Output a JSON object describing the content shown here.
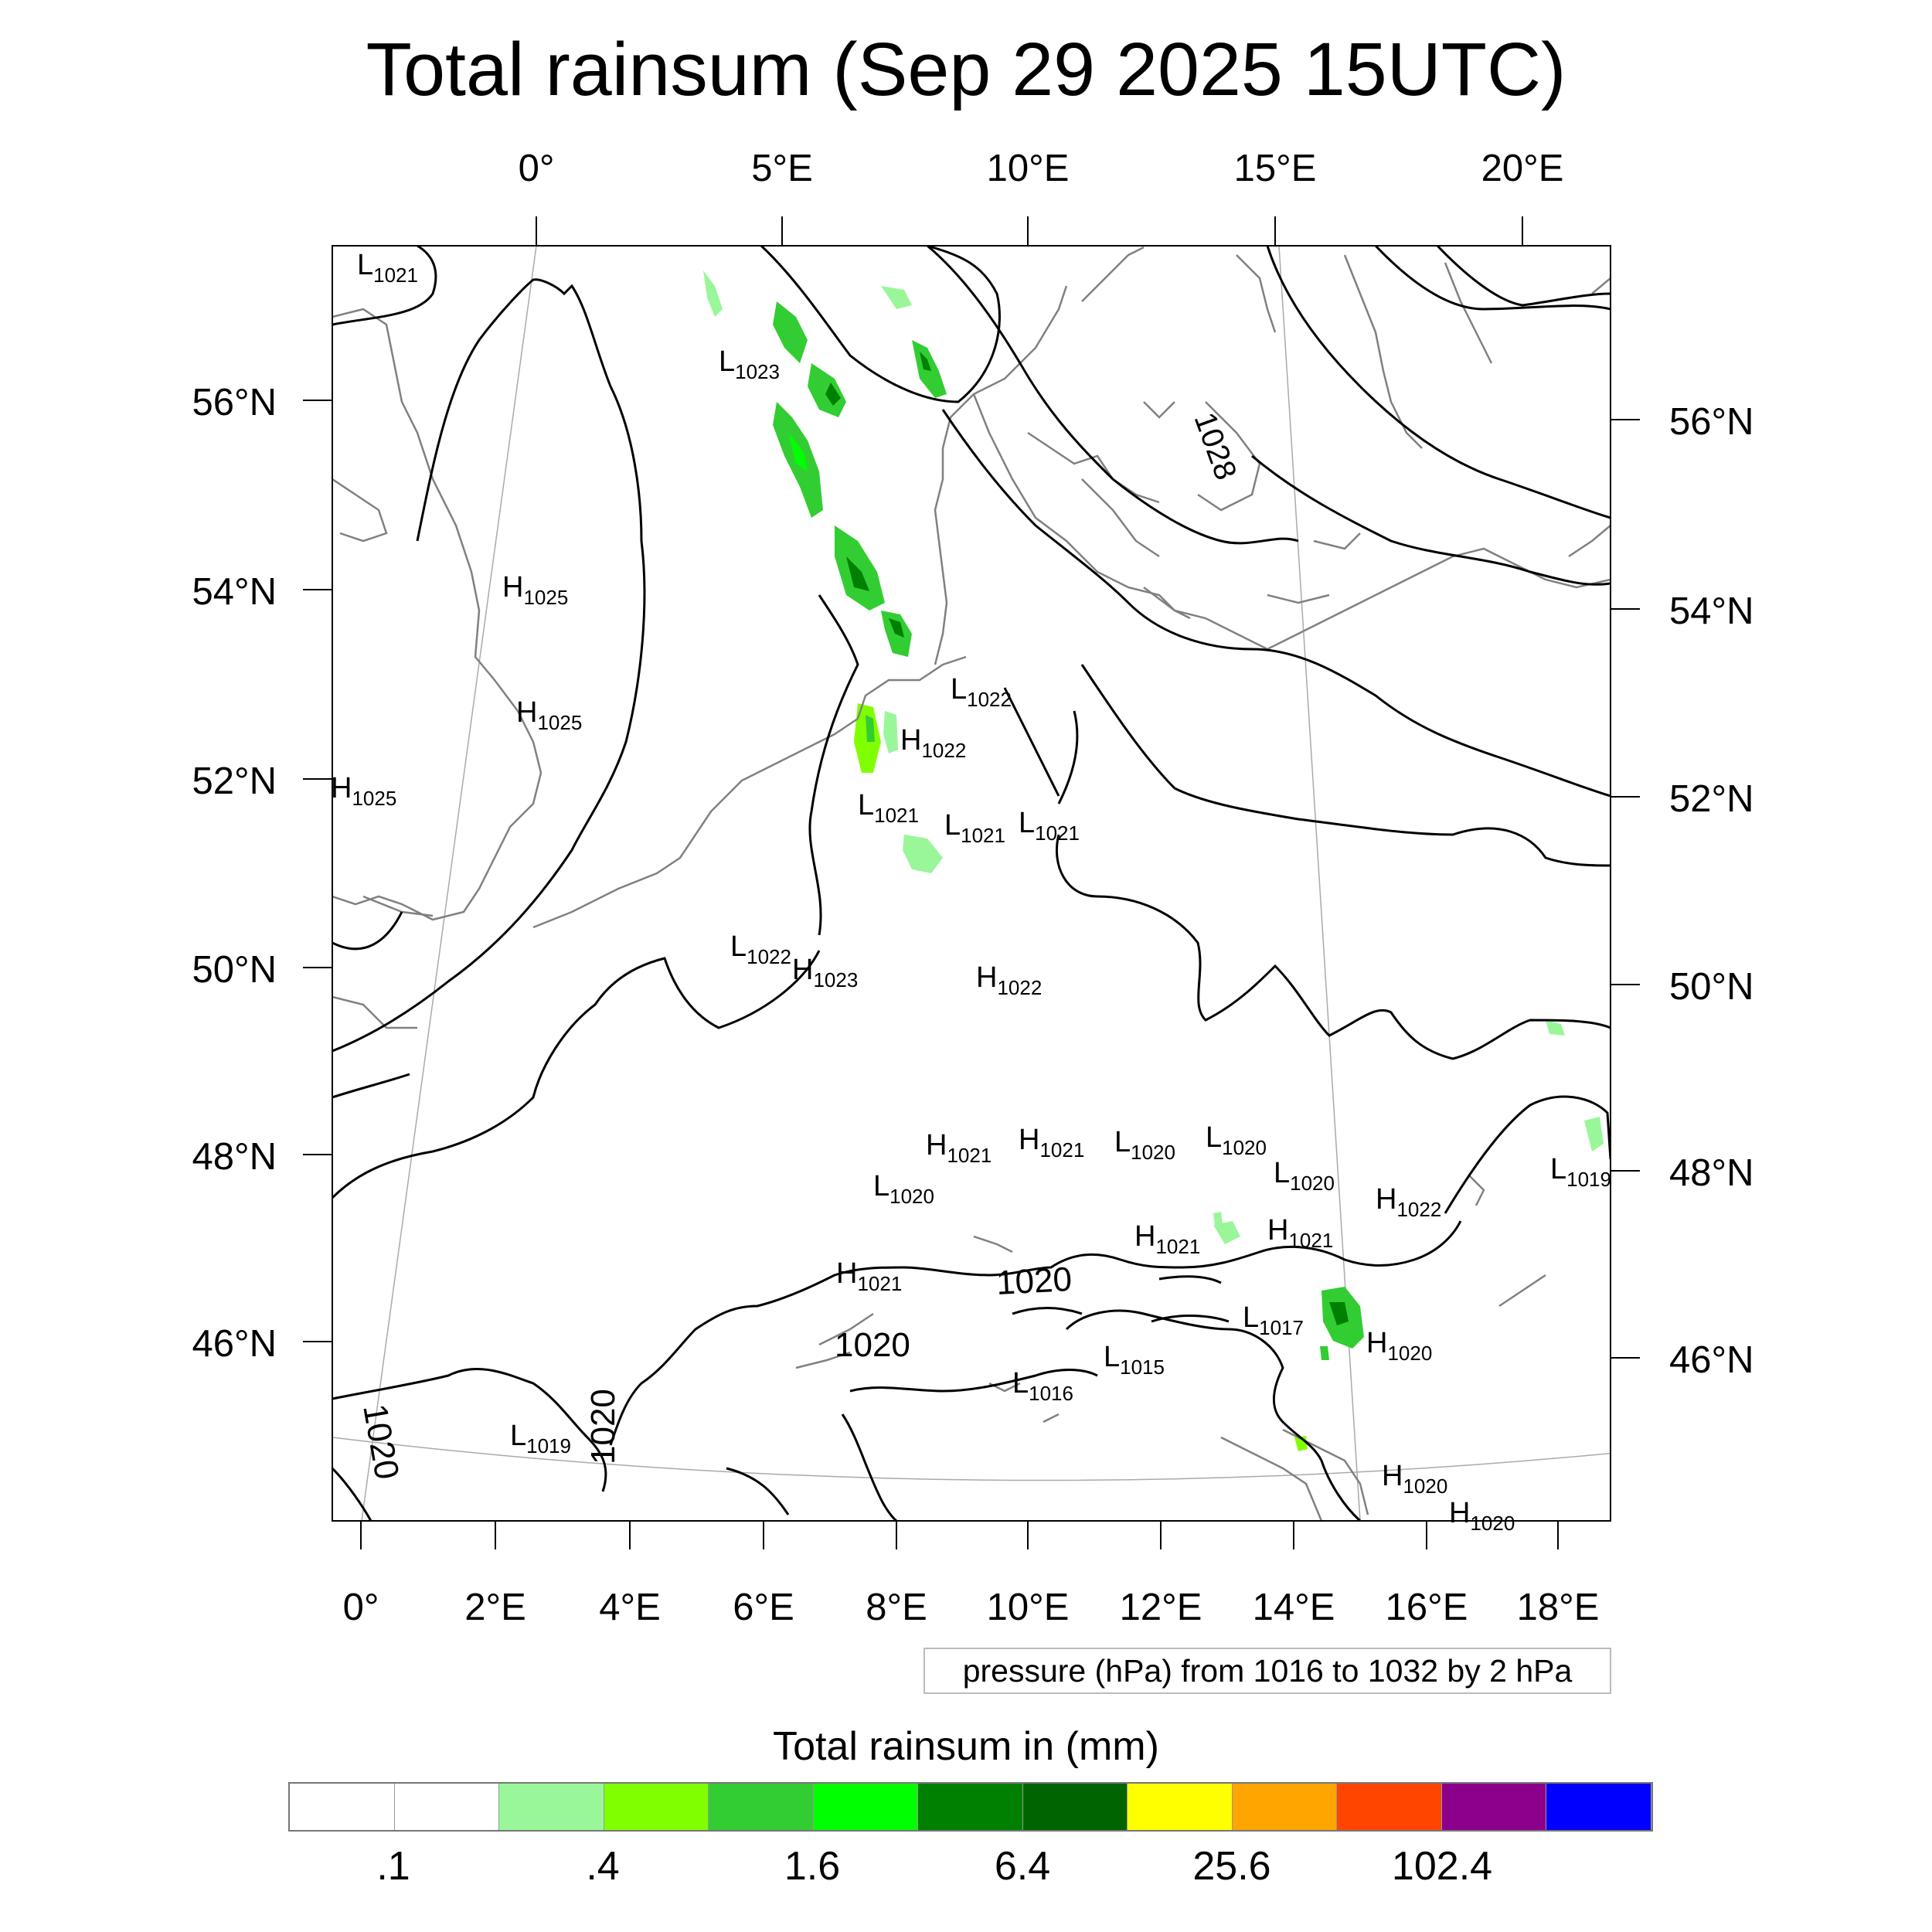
{
  "title": "Total rainsum (Sep 29 2025 15UTC)",
  "top_lon_labels": [
    "0°",
    "5°E",
    "10°E",
    "15°E",
    "20°E"
  ],
  "bottom_lon_labels": [
    "0°",
    "2°E",
    "4°E",
    "6°E",
    "8°E",
    "10°E",
    "12°E",
    "14°E",
    "16°E",
    "18°E"
  ],
  "left_lat_labels": [
    "56°N",
    "54°N",
    "52°N",
    "50°N",
    "48°N",
    "46°N"
  ],
  "right_lat_labels": [
    "56°N",
    "54°N",
    "52°N",
    "50°N",
    "48°N",
    "46°N"
  ],
  "pressure_labels": [
    {
      "t": "L",
      "v": "1021"
    },
    {
      "t": "L",
      "v": "1023"
    },
    {
      "t": "H",
      "v": "1025"
    },
    {
      "t": "H",
      "v": "1025"
    },
    {
      "t": "H",
      "v": "1025"
    },
    {
      "t": "L",
      "v": "1022"
    },
    {
      "t": "H",
      "v": "1022"
    },
    {
      "t": "L",
      "v": "1021"
    },
    {
      "t": "L",
      "v": "1021"
    },
    {
      "t": "L",
      "v": "1021"
    },
    {
      "t": "L",
      "v": "1022"
    },
    {
      "t": "H",
      "v": "1023"
    },
    {
      "t": "H",
      "v": "1022"
    },
    {
      "t": "H",
      "v": "1021"
    },
    {
      "t": "H",
      "v": "1021"
    },
    {
      "t": "L",
      "v": "1020"
    },
    {
      "t": "L",
      "v": "1020"
    },
    {
      "t": "L",
      "v": "1020"
    },
    {
      "t": "L",
      "v": "1020"
    },
    {
      "t": "H",
      "v": "1022"
    },
    {
      "t": "L",
      "v": "1019"
    },
    {
      "t": "H",
      "v": "1021"
    },
    {
      "t": "H",
      "v": "1021"
    },
    {
      "t": "H",
      "v": "1021"
    },
    {
      "t": "L",
      "v": "1017"
    },
    {
      "t": "H",
      "v": "1020"
    },
    {
      "t": "L",
      "v": "1015"
    },
    {
      "t": "L",
      "v": "1016"
    },
    {
      "t": "L",
      "v": "1019"
    },
    {
      "t": "H",
      "v": "1020"
    },
    {
      "t": "H",
      "v": "1020"
    }
  ],
  "contour_labels": [
    "1028",
    "1020",
    "1020",
    "1020",
    "1020"
  ],
  "pressure_note": "pressure (hPa) from 1016 to 1032 by 2 hPa",
  "colorbar": {
    "title": "Total rainsum in (mm)",
    "colors": [
      "#ffffff",
      "#ffffff",
      "#99f799",
      "#80ff00",
      "#32cd32",
      "#00ff00",
      "#008000",
      "#006400",
      "#ffff00",
      "#ffa500",
      "#ff4500",
      "#8b008b",
      "#0000ff"
    ],
    "labels": [
      ".1",
      ".4",
      "1.6",
      "6.4",
      "25.6",
      "102.4"
    ]
  }
}
